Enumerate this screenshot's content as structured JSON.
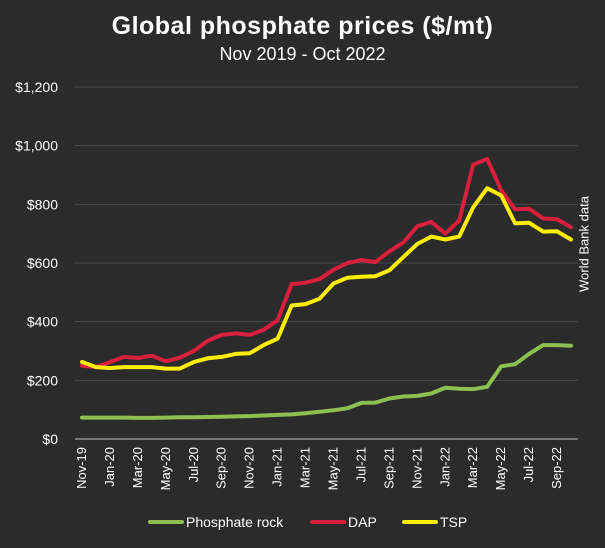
{
  "chart_data": {
    "type": "line",
    "title": "Global phosphate prices ($/mt)",
    "subtitle": "Nov 2019 - Oct 2022",
    "annotation": "World Bank data",
    "ylim": [
      0,
      1200
    ],
    "y_ticks": [
      "$0",
      "$200",
      "$400",
      "$600",
      "$800",
      "$1,000",
      "$1,200"
    ],
    "y_tick_values": [
      0,
      200,
      400,
      600,
      800,
      1000,
      1200
    ],
    "grid": "horizontal",
    "legend_position": "bottom",
    "x": [
      "Nov-19",
      "Dec-19",
      "Jan-20",
      "Feb-20",
      "Mar-20",
      "Apr-20",
      "May-20",
      "Jun-20",
      "Jul-20",
      "Aug-20",
      "Sep-20",
      "Oct-20",
      "Nov-20",
      "Dec-20",
      "Jan-21",
      "Feb-21",
      "Mar-21",
      "Apr-21",
      "May-21",
      "Jun-21",
      "Jul-21",
      "Aug-21",
      "Sep-21",
      "Oct-21",
      "Nov-21",
      "Dec-21",
      "Jan-22",
      "Feb-22",
      "Mar-22",
      "Apr-22",
      "May-22",
      "Jun-22",
      "Jul-22",
      "Aug-22",
      "Sep-22",
      "Oct-22"
    ],
    "x_tick_labels": [
      "Nov-19",
      "Jan-20",
      "Mar-20",
      "May-20",
      "Jul-20",
      "Sep-20",
      "Nov-20",
      "Jan-21",
      "Mar-21",
      "May-21",
      "Jul-21",
      "Sep-21",
      "Nov-21",
      "Jan-22",
      "Mar-22",
      "May-22",
      "Jul-22",
      "Sep-22"
    ],
    "series": [
      {
        "name": "Phosphate rock",
        "color": "#8cc152",
        "values": [
          73,
          73,
          73,
          73,
          72,
          72,
          73,
          74,
          74,
          75,
          76,
          77,
          78,
          80,
          82,
          84,
          88,
          93,
          98,
          105,
          123,
          124,
          138,
          145,
          147,
          155,
          175,
          171,
          170,
          178,
          248,
          255,
          290,
          320,
          320,
          318
        ]
      },
      {
        "name": "DAP",
        "color": "#d81f3c",
        "values": [
          250,
          245,
          262,
          280,
          276,
          284,
          265,
          277,
          300,
          335,
          355,
          360,
          355,
          372,
          405,
          528,
          533,
          545,
          577,
          600,
          610,
          603,
          640,
          670,
          725,
          740,
          700,
          745,
          935,
          955,
          847,
          783,
          785,
          752,
          749,
          722
        ]
      },
      {
        "name": "TSP",
        "color": "#ffee00",
        "values": [
          263,
          245,
          242,
          245,
          245,
          245,
          240,
          240,
          262,
          275,
          280,
          290,
          292,
          320,
          342,
          455,
          460,
          478,
          530,
          550,
          553,
          555,
          575,
          620,
          665,
          690,
          680,
          690,
          790,
          855,
          830,
          735,
          737,
          707,
          708,
          680
        ]
      }
    ]
  }
}
